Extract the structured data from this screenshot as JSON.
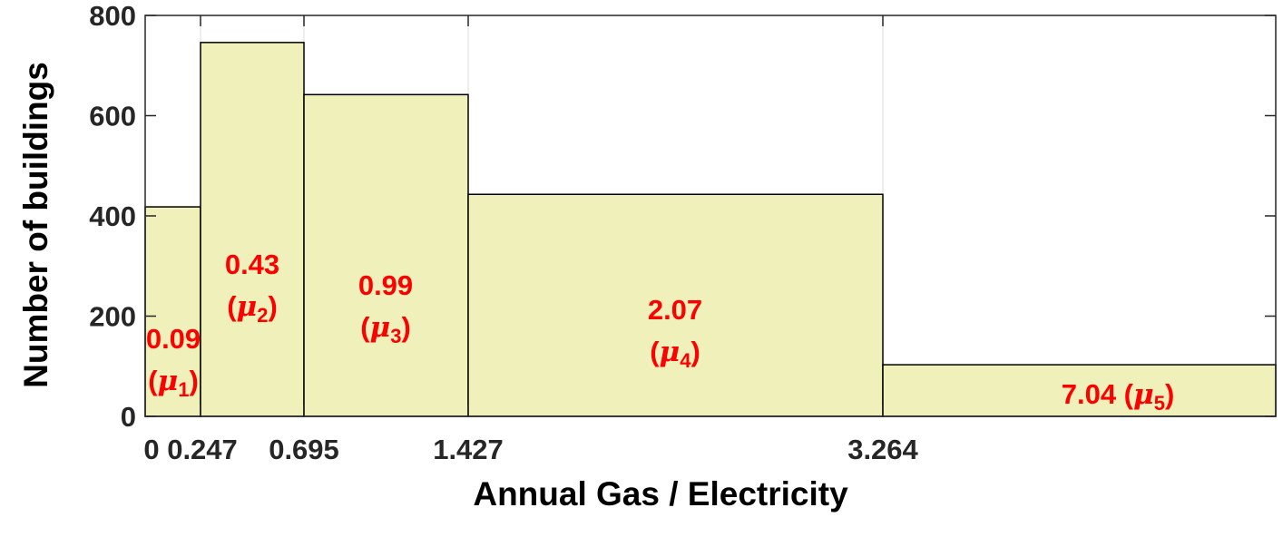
{
  "chart_data": {
    "type": "histogram",
    "xlabel": "Annual Gas / Electricity",
    "ylabel": "Number of buildings",
    "ylim": [
      0,
      800
    ],
    "yticks": [
      0,
      200,
      400,
      600,
      800
    ],
    "xtick_labels": [
      "0",
      "0.247",
      "0.695",
      "1.427",
      "3.264"
    ],
    "grid": "vertical lines at bin edges",
    "bar_color": "#f0f0bb",
    "label_color": "#ff0000",
    "bins": [
      {
        "label": "0.09",
        "sub": "1",
        "count": 418
      },
      {
        "label": "0.43",
        "sub": "2",
        "count": 746
      },
      {
        "label": "0.99",
        "sub": "3",
        "count": 642
      },
      {
        "label": "2.07",
        "sub": "4",
        "count": 443
      },
      {
        "label": "7.04",
        "sub": "5",
        "count": 103
      }
    ],
    "mu_symbol": "μ"
  }
}
